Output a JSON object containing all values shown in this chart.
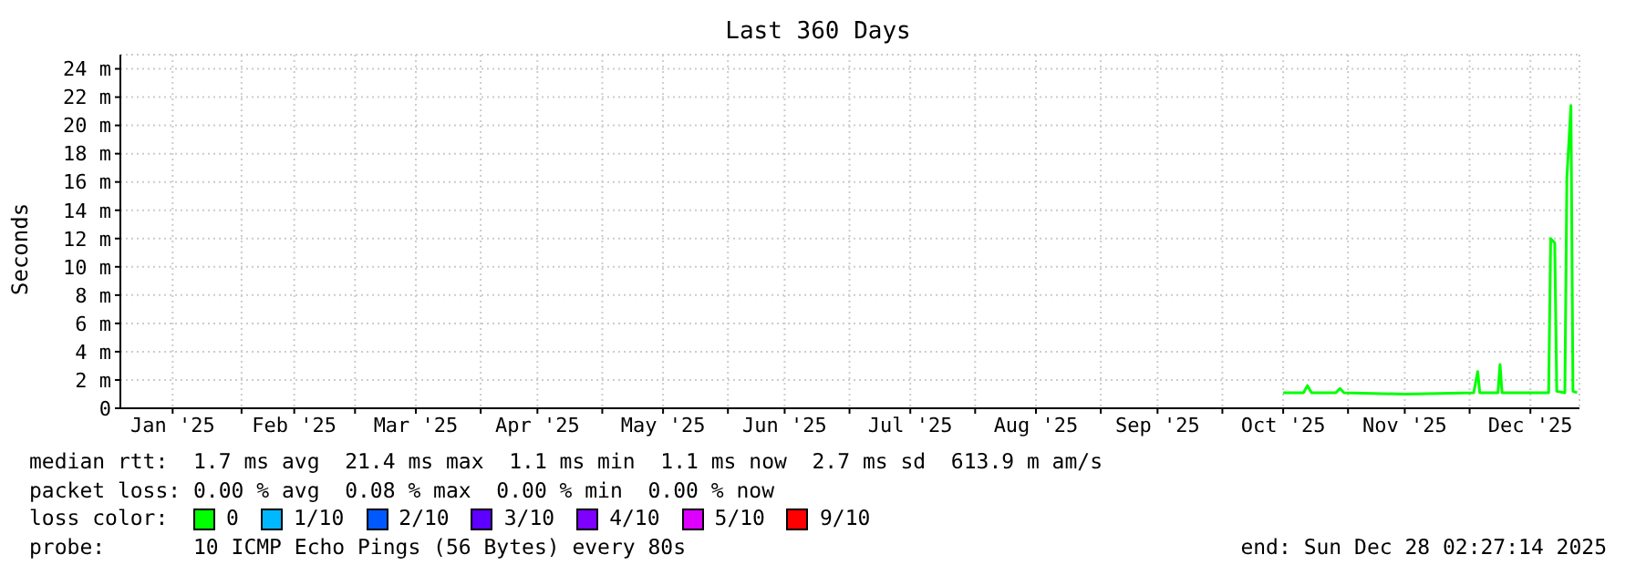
{
  "chart_data": {
    "type": "line",
    "title": "Last 360 Days",
    "ylabel": "Seconds",
    "xlim": [
      "2025-01-02T02:27",
      "2025-12-28T02:27"
    ],
    "xticks": [
      {
        "value": "2025-01-15",
        "label": "Jan '25"
      },
      {
        "value": "2025-02-01",
        "label": null
      },
      {
        "value": "2025-02-14",
        "label": "Feb '25"
      },
      {
        "value": "2025-03-01",
        "label": null
      },
      {
        "value": "2025-03-16",
        "label": "Mar '25"
      },
      {
        "value": "2025-04-01",
        "label": null
      },
      {
        "value": "2025-04-15",
        "label": "Apr '25"
      },
      {
        "value": "2025-05-01",
        "label": null
      },
      {
        "value": "2025-05-16",
        "label": "May '25"
      },
      {
        "value": "2025-06-01",
        "label": null
      },
      {
        "value": "2025-06-15",
        "label": "Jun '25"
      },
      {
        "value": "2025-07-01",
        "label": null
      },
      {
        "value": "2025-07-16",
        "label": "Jul '25"
      },
      {
        "value": "2025-08-01",
        "label": null
      },
      {
        "value": "2025-08-16",
        "label": "Aug '25"
      },
      {
        "value": "2025-09-01",
        "label": null
      },
      {
        "value": "2025-09-15",
        "label": "Sep '25"
      },
      {
        "value": "2025-10-01",
        "label": null
      },
      {
        "value": "2025-10-16",
        "label": "Oct '25"
      },
      {
        "value": "2025-11-01",
        "label": null
      },
      {
        "value": "2025-11-15",
        "label": "Nov '25"
      },
      {
        "value": "2025-12-01",
        "label": null
      },
      {
        "value": "2025-12-16",
        "label": "Dec '25"
      }
    ],
    "ylim": [
      0,
      25
    ],
    "yticks": [
      0,
      {
        "value": 2,
        "label": "2 m"
      },
      {
        "value": 4,
        "label": "4 m"
      },
      {
        "value": 6,
        "label": "6 m"
      },
      {
        "value": 8,
        "label": "8 m"
      },
      {
        "value": 10,
        "label": "10 m"
      },
      {
        "value": 12,
        "label": "12 m"
      },
      {
        "value": 14,
        "label": "14 m"
      },
      {
        "value": 16,
        "label": "16 m"
      },
      {
        "value": 18,
        "label": "18 m"
      },
      {
        "value": 20,
        "label": "20 m"
      },
      {
        "value": 22,
        "label": "22 m"
      },
      {
        "value": 24,
        "label": "24 m"
      }
    ],
    "grid": true,
    "legend": "bottom",
    "legend_title": "loss color:",
    "marker": "none",
    "series": [
      {
        "name": "0",
        "color": "#00ff00",
        "x": [
          "2025-10-16",
          "2025-10-21",
          "2025-10-22",
          "2025-10-23",
          "2025-10-29",
          "2025-10-30",
          "2025-10-31",
          "2025-11-15",
          "2025-12-02",
          "2025-12-03",
          "2025-12-03T12:00",
          "2025-12-08",
          "2025-12-08T12:00",
          "2025-12-09",
          "2025-12-20T12:00",
          "2025-12-21",
          "2025-12-22",
          "2025-12-22T12:00",
          "2025-12-24T12:00",
          "2025-12-25",
          "2025-12-26",
          "2025-12-26T12:00",
          "2025-12-27T12:00"
        ],
        "values": [
          1.1,
          1.1,
          1.6,
          1.1,
          1.1,
          1.4,
          1.1,
          1.0,
          1.1,
          2.6,
          1.1,
          1.1,
          3.1,
          1.1,
          1.1,
          12.0,
          11.7,
          1.2,
          1.1,
          16.3,
          21.4,
          1.2,
          1.1
        ]
      },
      {
        "name": "1/10",
        "color": "#00b8ff"
      },
      {
        "name": "2/10",
        "color": "#0059ff"
      },
      {
        "name": "3/10",
        "color": "#5e00ff"
      },
      {
        "name": "4/10",
        "color": "#7e00ff"
      },
      {
        "name": "5/10",
        "color": "#dd00ff"
      },
      {
        "name": "9/10",
        "color": "#ff0000"
      }
    ],
    "annotations": [
      "median rtt:  1.7 ms avg  21.4 ms max  1.1 ms min  1.1 ms now  2.7 ms sd  613.9 m am/s",
      "packet loss: 0.00 % avg  0.08 % max  0.00 % min  0.00 % now",
      "probe:       10 ICMP Echo Pings (56 Bytes) every 80s",
      "end: Sun Dec 28 02:27:14 2025"
    ]
  }
}
